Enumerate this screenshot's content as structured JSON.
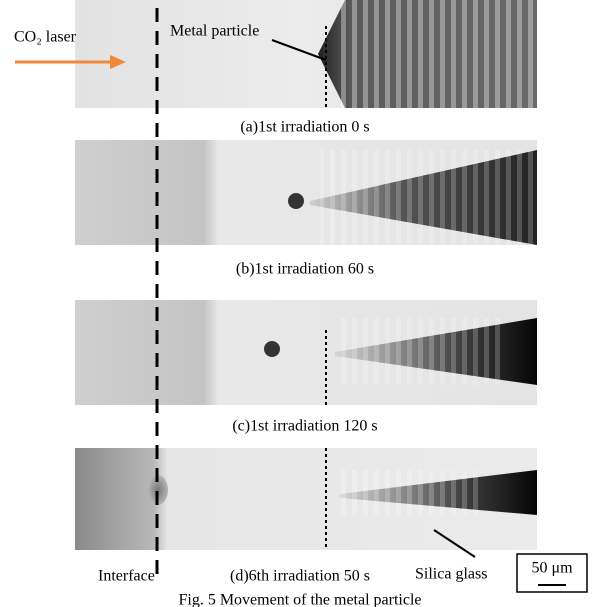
{
  "labels": {
    "laser": "CO₂ laser",
    "particle": "Metal particle",
    "interface": "Interface",
    "glass": "Silica glass"
  },
  "panels": [
    {
      "caption": "(a)1st irradiation 0 s"
    },
    {
      "caption": "(b)1st irradiation 60 s"
    },
    {
      "caption": "(c)1st irradiation 120 s"
    },
    {
      "caption": "(d)6th irradiation 50 s"
    }
  ],
  "scale_bar": "50 μm",
  "figure_caption": "Fig. 5 Movement of the metal particle"
}
